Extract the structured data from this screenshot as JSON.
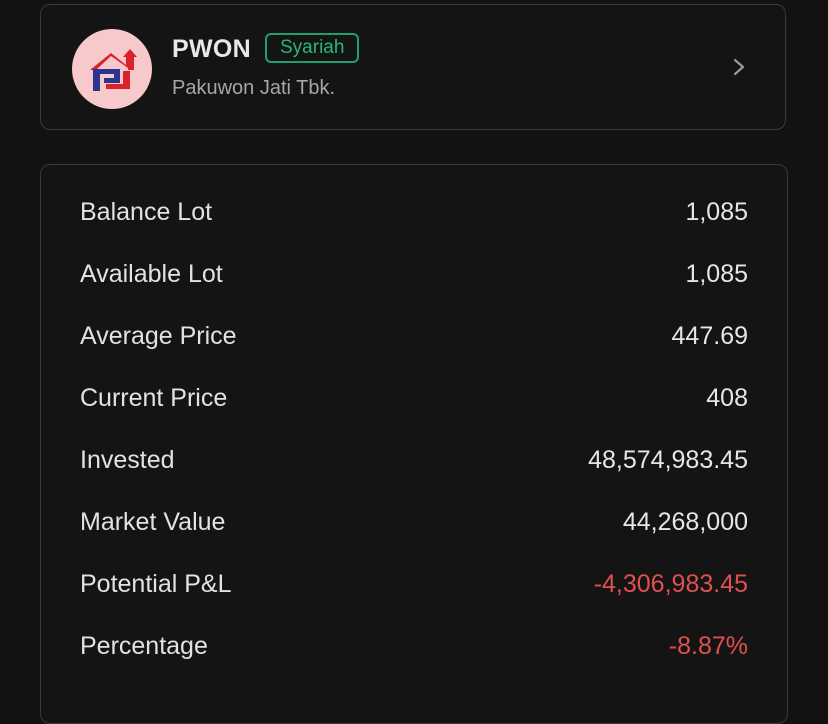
{
  "stock": {
    "ticker": "PWON",
    "badge": "Syariah",
    "company": "Pakuwon Jati Tbk.",
    "logo_icon": "pakuwon-logo-icon",
    "chevron_icon": "chevron-right-icon"
  },
  "details": [
    {
      "label": "Balance Lot",
      "value": "1,085",
      "negative": false
    },
    {
      "label": "Available Lot",
      "value": "1,085",
      "negative": false
    },
    {
      "label": "Average Price",
      "value": "447.69",
      "negative": false
    },
    {
      "label": "Current Price",
      "value": "408",
      "negative": false
    },
    {
      "label": "Invested",
      "value": "48,574,983.45",
      "negative": false
    },
    {
      "label": "Market Value",
      "value": "44,268,000",
      "negative": false
    },
    {
      "label": "Potential P&L",
      "value": "-4,306,983.45",
      "negative": true
    },
    {
      "label": "Percentage",
      "value": "-8.87%",
      "negative": true
    }
  ],
  "colors": {
    "background": "#121212",
    "syariah_green": "#27b879",
    "negative_red": "#e0504e",
    "logo_bg": "#f7c9cb",
    "logo_blue": "#2b3590",
    "logo_red": "#d8232a"
  }
}
